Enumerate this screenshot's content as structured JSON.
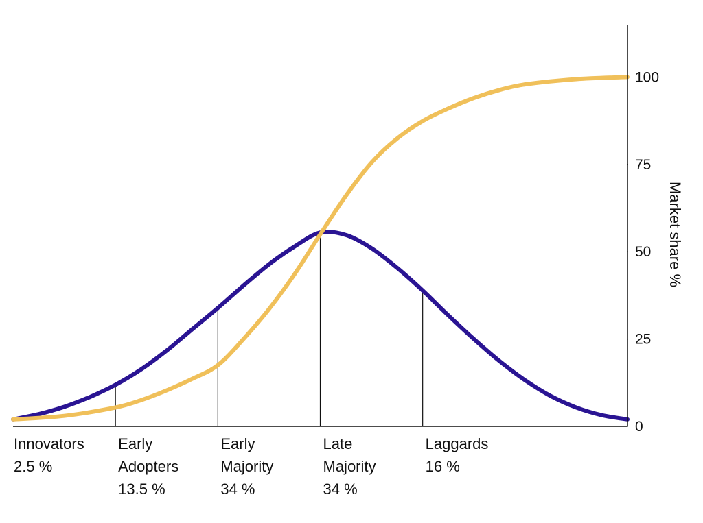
{
  "chart_data": {
    "type": "line",
    "title": "",
    "xlabel": "",
    "ylabel": "Market share %",
    "ylim": [
      0,
      115
    ],
    "yticks": [
      0,
      25,
      50,
      75,
      100
    ],
    "grid": false,
    "y_axis_position": "right",
    "colors": {
      "bell": "#2a1493",
      "s_curve": "#f0c05a",
      "axis": "#111111"
    },
    "series": [
      {
        "key": "adoption",
        "color": "#2a1493",
        "points": [
          [
            -3.0,
            2.0
          ],
          [
            -2.75,
            3.5
          ],
          [
            -2.5,
            5.6
          ],
          [
            -2.25,
            8.4
          ],
          [
            -2.0,
            11.9
          ],
          [
            -1.75,
            16.3
          ],
          [
            -1.5,
            21.7
          ],
          [
            -1.25,
            27.8
          ],
          [
            -1.0,
            33.9
          ],
          [
            -0.75,
            40.3
          ],
          [
            -0.5,
            46.4
          ],
          [
            -0.25,
            51.5
          ],
          [
            0.0,
            55.5
          ],
          [
            0.25,
            54.8
          ],
          [
            0.5,
            51.0
          ],
          [
            0.75,
            45.4
          ],
          [
            1.0,
            38.9
          ],
          [
            1.25,
            31.8
          ],
          [
            1.5,
            25.0
          ],
          [
            1.75,
            18.7
          ],
          [
            2.0,
            13.2
          ],
          [
            2.25,
            8.7
          ],
          [
            2.5,
            5.4
          ],
          [
            2.75,
            3.2
          ],
          [
            3.0,
            2.0
          ]
        ]
      },
      {
        "key": "market_share",
        "color": "#f0c05a",
        "points": [
          [
            -3.0,
            2.0
          ],
          [
            -2.5,
            3.0
          ],
          [
            -2.0,
            5.4
          ],
          [
            -1.75,
            7.5
          ],
          [
            -1.5,
            10.3
          ],
          [
            -1.25,
            13.6
          ],
          [
            -1.0,
            17.5
          ],
          [
            -0.75,
            25.0
          ],
          [
            -0.5,
            33.6
          ],
          [
            -0.25,
            43.6
          ],
          [
            0.0,
            55.0
          ],
          [
            0.25,
            66.0
          ],
          [
            0.5,
            75.5
          ],
          [
            0.75,
            82.4
          ],
          [
            1.0,
            87.4
          ],
          [
            1.25,
            91.0
          ],
          [
            1.5,
            94.0
          ],
          [
            1.75,
            96.3
          ],
          [
            2.0,
            97.9
          ],
          [
            2.5,
            99.4
          ],
          [
            3.0,
            100.0
          ]
        ]
      }
    ],
    "dividers": [
      {
        "x": -2.0,
        "y": 11.9
      },
      {
        "x": -1.0,
        "y": 33.9
      },
      {
        "x": 0.0,
        "y": 55.5
      },
      {
        "x": 1.0,
        "y": 38.9
      }
    ],
    "segments": [
      {
        "name": "innovators",
        "x_start": -3.0,
        "lines": [
          "Innovators",
          "2.5 %"
        ]
      },
      {
        "name": "early-adopters",
        "x_start": -2.0,
        "lines": [
          "Early",
          "Adopters",
          "13.5 %"
        ]
      },
      {
        "name": "early-majority",
        "x_start": -1.0,
        "lines": [
          "Early",
          "Majority",
          "34 %"
        ]
      },
      {
        "name": "late-majority",
        "x_start": 0.0,
        "lines": [
          "Late",
          "Majority",
          "34 %"
        ]
      },
      {
        "name": "laggards",
        "x_start": 1.0,
        "lines": [
          "Laggards",
          "16 %"
        ]
      }
    ]
  }
}
